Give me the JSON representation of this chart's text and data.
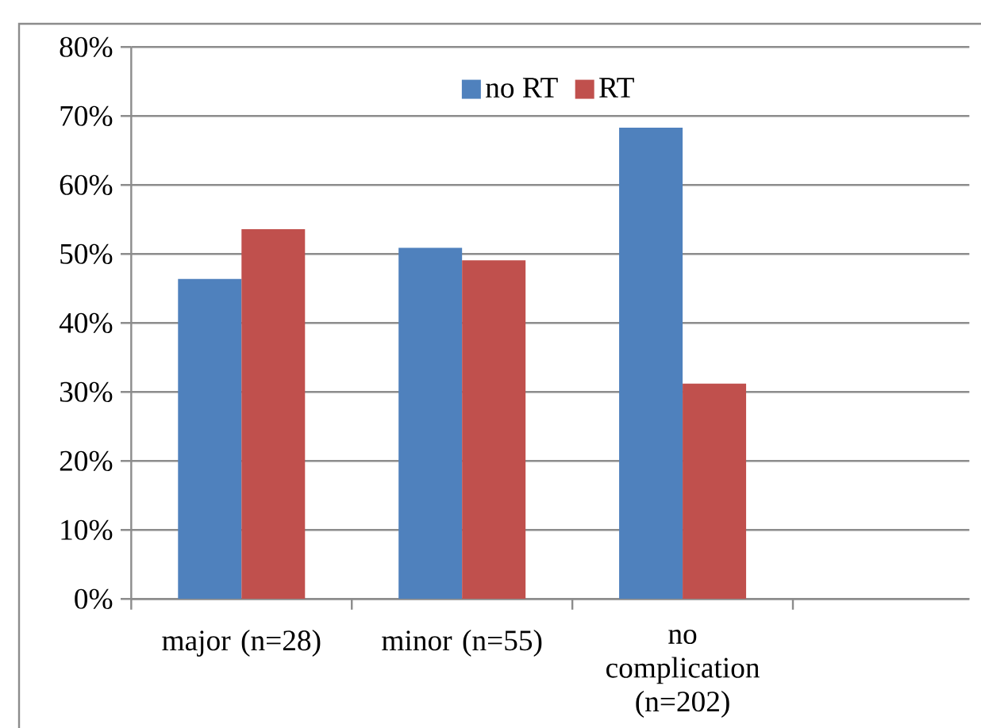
{
  "chart_data": {
    "type": "bar",
    "categories": [
      "major (n=28)",
      "minor (n=55)",
      "no complication (n=202)",
      null
    ],
    "series": [
      {
        "name": "no RT",
        "color": "#4f81bd",
        "values": [
          46.4,
          50.9,
          68.3,
          null
        ]
      },
      {
        "name": "RT",
        "color": "#c0504d",
        "values": [
          53.6,
          49.1,
          31.2,
          null
        ]
      }
    ],
    "ylim": [
      0,
      80
    ],
    "yticks": [
      {
        "value": 0,
        "label": "0%"
      },
      {
        "value": 10,
        "label": "10%"
      },
      {
        "value": 20,
        "label": "20%"
      },
      {
        "value": 30,
        "label": "30%"
      },
      {
        "value": 40,
        "label": "40%"
      },
      {
        "value": 50,
        "label": "50%"
      },
      {
        "value": 60,
        "label": "60%"
      },
      {
        "value": 70,
        "label": "70%"
      },
      {
        "value": 80,
        "label": "80%"
      }
    ],
    "grid": "y",
    "legend": "top"
  }
}
